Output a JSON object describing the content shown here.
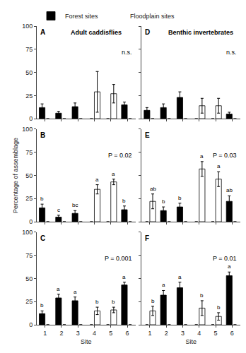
{
  "chart_data": [
    {
      "type": "bar",
      "panel_label": "A",
      "title": "Adult caddisflies",
      "annotation": "n.s.",
      "categories": [
        1,
        2,
        3,
        4,
        5,
        6
      ],
      "series": [
        {
          "name": "Forest sites",
          "color": "#000000",
          "values": [
            12,
            6,
            13,
            0,
            0,
            15
          ],
          "errors": [
            4,
            2,
            4,
            0,
            0,
            3
          ]
        },
        {
          "name": "Floodplain sites",
          "color": "#ffffff",
          "values": [
            0,
            0,
            0,
            29,
            27,
            0
          ],
          "errors": [
            0,
            0,
            0,
            22,
            10,
            0
          ]
        }
      ],
      "ylim": [
        0,
        100
      ],
      "yticks": [
        0,
        25,
        50,
        75,
        100
      ],
      "grid": false,
      "tick_labels": "y"
    },
    {
      "type": "bar",
      "panel_label": "B",
      "annotation": "P = 0.02",
      "ylabel": "Percentage of assemblage",
      "categories": [
        1,
        2,
        3,
        4,
        5,
        6
      ],
      "series": [
        {
          "name": "Forest sites",
          "color": "#000000",
          "values": [
            15,
            5,
            9,
            0,
            0,
            13
          ],
          "errors": [
            4,
            2,
            3,
            0,
            0,
            4
          ],
          "letters": [
            "b",
            "c",
            "bc",
            null,
            null,
            "b"
          ]
        },
        {
          "name": "Floodplain sites",
          "color": "#ffffff",
          "values": [
            0,
            0,
            0,
            35,
            43,
            0
          ],
          "errors": [
            0,
            0,
            0,
            5,
            3,
            0
          ],
          "letters": [
            null,
            null,
            null,
            "a",
            "a",
            null
          ]
        }
      ],
      "ylim": [
        0,
        100
      ],
      "yticks": [
        0,
        25,
        50,
        75,
        100
      ],
      "grid": false,
      "tick_labels": "y",
      "legend": "upper left"
    },
    {
      "type": "bar",
      "panel_label": "C",
      "annotation": "P = 0.001",
      "xlabel": "Site",
      "categories": [
        1,
        2,
        3,
        4,
        5,
        6
      ],
      "series": [
        {
          "name": "Forest sites",
          "color": "#000000",
          "values": [
            12,
            29,
            26,
            0,
            0,
            43
          ],
          "errors": [
            3,
            4,
            4,
            0,
            0,
            3
          ],
          "letters": [
            "b",
            "a",
            "a",
            null,
            null,
            "a"
          ]
        },
        {
          "name": "Floodplain sites",
          "color": "#ffffff",
          "values": [
            0,
            0,
            0,
            15,
            16,
            0
          ],
          "errors": [
            0,
            0,
            0,
            4,
            3,
            0
          ],
          "letters": [
            null,
            null,
            null,
            "b",
            "b",
            null
          ]
        }
      ],
      "ylim": [
        0,
        100
      ],
      "yticks": [
        0,
        25,
        50,
        75,
        100
      ],
      "grid": false
    },
    {
      "type": "bar",
      "panel_label": "D",
      "title": "Benthic invertebrates",
      "annotation": "n.s.",
      "categories": [
        1,
        2,
        3,
        4,
        5,
        6
      ],
      "series": [
        {
          "name": "Forest sites",
          "color": "#000000",
          "values": [
            9,
            12,
            23,
            0,
            0,
            5
          ],
          "errors": [
            3,
            4,
            6,
            0,
            0,
            2
          ]
        },
        {
          "name": "Floodplain sites",
          "color": "#ffffff",
          "values": [
            0,
            0,
            0,
            14,
            14,
            0
          ],
          "errors": [
            0,
            0,
            0,
            8,
            8,
            0
          ]
        }
      ],
      "ylim": [
        0,
        100
      ],
      "yticks": [
        0,
        25,
        50,
        75,
        100
      ],
      "grid": false,
      "tick_labels": false
    },
    {
      "type": "bar",
      "panel_label": "E",
      "annotation": "P = 0.03",
      "categories": [
        1,
        2,
        3,
        4,
        5,
        6
      ],
      "series": [
        {
          "name": "Forest sites",
          "color": "#000000",
          "values": [
            0,
            12,
            16,
            0,
            0,
            22
          ],
          "errors": [
            0,
            4,
            4,
            0,
            0,
            6
          ],
          "letters": [
            null,
            "b",
            "b",
            null,
            null,
            "ab"
          ]
        },
        {
          "name": "Floodplain sites",
          "color": "#ffffff",
          "values": [
            22,
            0,
            0,
            57,
            46,
            0
          ],
          "errors": [
            8,
            0,
            0,
            8,
            8,
            0
          ],
          "letters": [
            "ab",
            null,
            null,
            "a",
            "a",
            null
          ]
        }
      ],
      "ylim": [
        0,
        100
      ],
      "yticks": [
        0,
        25,
        50,
        75,
        100
      ],
      "grid": false,
      "tick_labels": false
    },
    {
      "type": "bar",
      "panel_label": "F",
      "annotation": "P = 0.01",
      "xlabel": "Site",
      "categories": [
        1,
        2,
        3,
        4,
        5,
        6
      ],
      "series": [
        {
          "name": "Forest sites",
          "color": "#000000",
          "values": [
            0,
            32,
            40,
            0,
            0,
            53
          ],
          "errors": [
            0,
            5,
            6,
            0,
            0,
            4
          ],
          "letters": [
            null,
            "a",
            "a",
            null,
            null,
            "a"
          ]
        },
        {
          "name": "Floodplain sites",
          "color": "#ffffff",
          "values": [
            15,
            0,
            0,
            18,
            9,
            0
          ],
          "errors": [
            5,
            0,
            0,
            8,
            4,
            0
          ],
          "letters": [
            "b",
            null,
            null,
            "b",
            "b",
            null
          ]
        }
      ],
      "ylim": [
        0,
        100
      ],
      "yticks": [
        0,
        25,
        50,
        75,
        100
      ],
      "grid": false,
      "tick_labels": "x"
    }
  ]
}
